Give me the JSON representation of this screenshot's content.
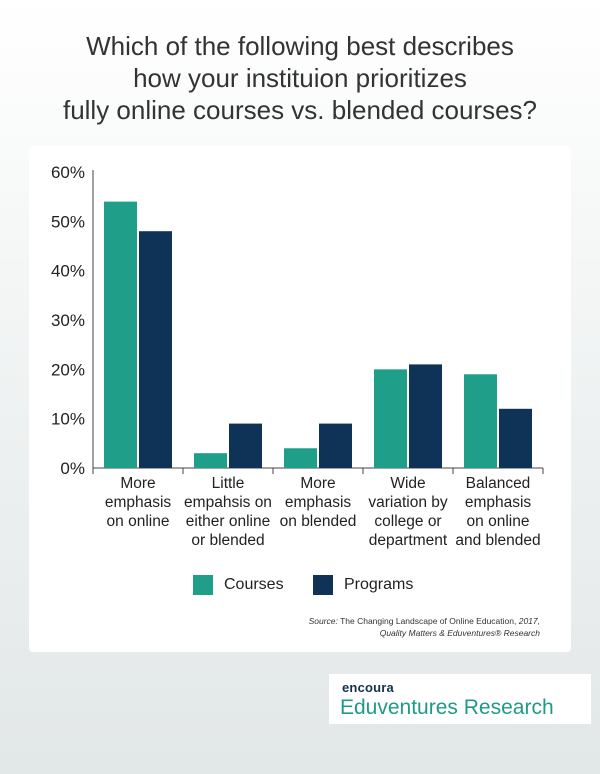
{
  "title_lines": [
    "Which of the following best describes",
    "how your instituion prioritizes",
    "fully online courses vs. blended courses?"
  ],
  "colors": {
    "courses": "#1f9f8a",
    "programs": "#0f3356",
    "axis": "#444444",
    "text": "#222222"
  },
  "chart_data": {
    "type": "bar",
    "categories": [
      [
        "More",
        "emphasis",
        "on online"
      ],
      [
        "Little",
        "empahsis on",
        "either online",
        "or blended"
      ],
      [
        "More",
        "emphasis",
        "on blended"
      ],
      [
        "Wide",
        "variation by",
        "college or",
        "department"
      ],
      [
        "Balanced",
        "emphasis",
        "on online",
        "and blended"
      ]
    ],
    "series": [
      {
        "name": "Courses",
        "values": [
          54,
          3,
          4,
          20,
          19
        ]
      },
      {
        "name": "Programs",
        "values": [
          48,
          9,
          9,
          21,
          12
        ]
      }
    ],
    "ylim": [
      0,
      60
    ],
    "yticks": [
      "0%",
      "10%",
      "20%",
      "30%",
      "40%",
      "50%",
      "60%"
    ],
    "grid": false,
    "legend_position": "bottom"
  },
  "legend": {
    "courses_label": "Courses",
    "programs_label": "Programs"
  },
  "source": {
    "prefix": "Source:",
    "title": "The Changing Landscape of Online Education,",
    "year": "2017,",
    "line2": "Quality Matters & Eduventures® Research"
  },
  "logo": {
    "top": "encoura",
    "bottom": "Eduventures Research"
  }
}
